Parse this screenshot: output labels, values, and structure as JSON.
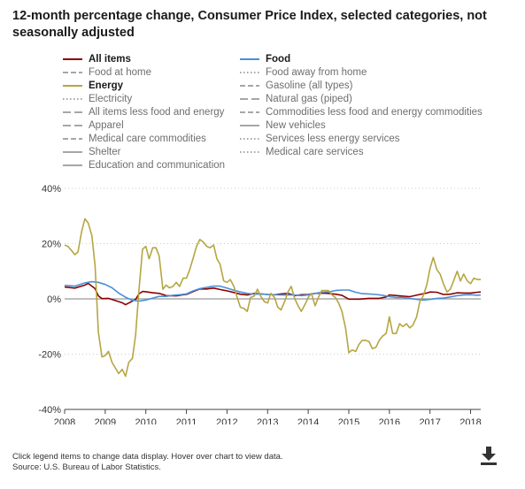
{
  "chart_data": {
    "type": "line",
    "title": "12-month percentage change, Consumer Price Index, selected categories, not seasonally adjusted",
    "xlabel": "",
    "ylabel": "",
    "xlim": [
      2008,
      2018.25
    ],
    "ylim": [
      -40,
      40
    ],
    "x_ticks": [
      "2008",
      "2009",
      "2010",
      "2011",
      "2012",
      "2013",
      "2014",
      "2015",
      "2016",
      "2017",
      "2018"
    ],
    "y_ticks": [
      "-40%",
      "-20%",
      "0%",
      "20%",
      "40%"
    ],
    "grid": "horizontal-dotted",
    "legend_entries": [
      {
        "name": "All items",
        "style": "solid",
        "active": true,
        "color": "#8b0000"
      },
      {
        "name": "Food",
        "style": "solid",
        "active": true,
        "color": "#4a90d9"
      },
      {
        "name": "Food at home",
        "style": "dashed",
        "active": false,
        "color": "#888888"
      },
      {
        "name": "Food away from home",
        "style": "dotted",
        "active": false,
        "color": "#888888"
      },
      {
        "name": "Energy",
        "style": "solid",
        "active": true,
        "color": "#b5a642"
      },
      {
        "name": "Gasoline (all types)",
        "style": "dashed",
        "active": false,
        "color": "#888888"
      },
      {
        "name": "Electricity",
        "style": "dotted",
        "active": false,
        "color": "#888888"
      },
      {
        "name": "Natural gas (piped)",
        "style": "longdash",
        "active": false,
        "color": "#888888"
      },
      {
        "name": "All items less food and energy",
        "style": "longdash",
        "active": false,
        "color": "#888888"
      },
      {
        "name": "Commodities less food and energy commodities",
        "style": "dashed",
        "active": false,
        "color": "#888888"
      },
      {
        "name": "Apparel",
        "style": "longdash",
        "active": false,
        "color": "#888888"
      },
      {
        "name": "New vehicles",
        "style": "solid",
        "active": false,
        "color": "#888888"
      },
      {
        "name": "Medical care commodities",
        "style": "dashed",
        "active": false,
        "color": "#888888"
      },
      {
        "name": "Services less energy services",
        "style": "dotted",
        "active": false,
        "color": "#888888"
      },
      {
        "name": "Shelter",
        "style": "solid",
        "active": false,
        "color": "#888888"
      },
      {
        "name": "Medical care services",
        "style": "dotted",
        "active": false,
        "color": "#888888"
      },
      {
        "name": "Education and communication",
        "style": "solid",
        "active": false,
        "color": "#888888"
      }
    ],
    "series": [
      {
        "name": "All items",
        "color": "#8b0000",
        "points": [
          [
            2008.0,
            4.3
          ],
          [
            2008.25,
            3.9
          ],
          [
            2008.5,
            5.0
          ],
          [
            2008.58,
            5.6
          ],
          [
            2008.75,
            3.7
          ],
          [
            2008.83,
            1.1
          ],
          [
            2008.92,
            0.1
          ],
          [
            2009.08,
            0.2
          ],
          [
            2009.25,
            -0.6
          ],
          [
            2009.42,
            -1.4
          ],
          [
            2009.5,
            -2.1
          ],
          [
            2009.58,
            -1.5
          ],
          [
            2009.75,
            -0.2
          ],
          [
            2009.83,
            1.8
          ],
          [
            2009.92,
            2.7
          ],
          [
            2010.0,
            2.6
          ],
          [
            2010.17,
            2.2
          ],
          [
            2010.33,
            2.0
          ],
          [
            2010.5,
            1.2
          ],
          [
            2010.75,
            1.1
          ],
          [
            2010.92,
            1.5
          ],
          [
            2011.0,
            1.6
          ],
          [
            2011.17,
            2.7
          ],
          [
            2011.33,
            3.6
          ],
          [
            2011.5,
            3.6
          ],
          [
            2011.67,
            3.9
          ],
          [
            2011.83,
            3.4
          ],
          [
            2012.0,
            2.9
          ],
          [
            2012.17,
            2.3
          ],
          [
            2012.33,
            1.7
          ],
          [
            2012.5,
            1.4
          ],
          [
            2012.67,
            2.0
          ],
          [
            2012.83,
            1.8
          ],
          [
            2013.0,
            1.6
          ],
          [
            2013.17,
            1.5
          ],
          [
            2013.33,
            1.8
          ],
          [
            2013.5,
            2.0
          ],
          [
            2013.67,
            1.2
          ],
          [
            2013.83,
            1.5
          ],
          [
            2014.0,
            1.6
          ],
          [
            2014.17,
            2.0
          ],
          [
            2014.33,
            2.1
          ],
          [
            2014.5,
            2.0
          ],
          [
            2014.67,
            1.7
          ],
          [
            2014.83,
            1.3
          ],
          [
            2015.0,
            -0.1
          ],
          [
            2015.25,
            -0.1
          ],
          [
            2015.5,
            0.2
          ],
          [
            2015.75,
            0.2
          ],
          [
            2015.92,
            0.7
          ],
          [
            2016.0,
            1.4
          ],
          [
            2016.25,
            1.1
          ],
          [
            2016.5,
            0.8
          ],
          [
            2016.75,
            1.6
          ],
          [
            2016.92,
            2.1
          ],
          [
            2017.0,
            2.5
          ],
          [
            2017.17,
            2.4
          ],
          [
            2017.33,
            1.6
          ],
          [
            2017.5,
            1.7
          ],
          [
            2017.67,
            2.2
          ],
          [
            2017.83,
            2.1
          ],
          [
            2018.0,
            2.1
          ],
          [
            2018.17,
            2.4
          ],
          [
            2018.25,
            2.5
          ]
        ]
      },
      {
        "name": "Food",
        "color": "#4a90d9",
        "points": [
          [
            2008.0,
            4.9
          ],
          [
            2008.25,
            4.6
          ],
          [
            2008.5,
            5.8
          ],
          [
            2008.67,
            6.2
          ],
          [
            2008.83,
            6.0
          ],
          [
            2009.0,
            5.2
          ],
          [
            2009.17,
            4.0
          ],
          [
            2009.33,
            2.1
          ],
          [
            2009.5,
            0.6
          ],
          [
            2009.67,
            -0.5
          ],
          [
            2009.83,
            -0.8
          ],
          [
            2010.0,
            -0.4
          ],
          [
            2010.17,
            0.3
          ],
          [
            2010.33,
            0.9
          ],
          [
            2010.5,
            0.9
          ],
          [
            2010.67,
            1.3
          ],
          [
            2010.83,
            1.5
          ],
          [
            2011.0,
            1.8
          ],
          [
            2011.17,
            2.9
          ],
          [
            2011.33,
            3.7
          ],
          [
            2011.5,
            4.2
          ],
          [
            2011.67,
            4.6
          ],
          [
            2011.83,
            4.6
          ],
          [
            2012.0,
            3.9
          ],
          [
            2012.17,
            3.1
          ],
          [
            2012.33,
            2.5
          ],
          [
            2012.5,
            2.0
          ],
          [
            2012.67,
            1.7
          ],
          [
            2012.83,
            1.8
          ],
          [
            2013.0,
            1.6
          ],
          [
            2013.17,
            1.5
          ],
          [
            2013.33,
            1.4
          ],
          [
            2013.5,
            1.4
          ],
          [
            2013.67,
            1.4
          ],
          [
            2013.83,
            1.2
          ],
          [
            2014.0,
            1.4
          ],
          [
            2014.17,
            2.0
          ],
          [
            2014.33,
            2.4
          ],
          [
            2014.5,
            2.5
          ],
          [
            2014.67,
            3.0
          ],
          [
            2014.83,
            3.2
          ],
          [
            2015.0,
            3.2
          ],
          [
            2015.17,
            2.4
          ],
          [
            2015.33,
            1.9
          ],
          [
            2015.5,
            1.8
          ],
          [
            2015.67,
            1.6
          ],
          [
            2015.83,
            1.3
          ],
          [
            2016.0,
            0.8
          ],
          [
            2016.17,
            0.5
          ],
          [
            2016.33,
            0.5
          ],
          [
            2016.5,
            0.2
          ],
          [
            2016.67,
            -0.2
          ],
          [
            2016.83,
            -0.4
          ],
          [
            2017.0,
            -0.2
          ],
          [
            2017.17,
            0.2
          ],
          [
            2017.33,
            0.3
          ],
          [
            2017.5,
            0.7
          ],
          [
            2017.67,
            1.2
          ],
          [
            2017.83,
            1.4
          ],
          [
            2018.0,
            1.5
          ],
          [
            2018.17,
            1.3
          ],
          [
            2018.25,
            1.4
          ]
        ]
      },
      {
        "name": "Energy",
        "color": "#b5a642",
        "points": [
          [
            2008.0,
            19.5
          ],
          [
            2008.08,
            19.0
          ],
          [
            2008.17,
            17.5
          ],
          [
            2008.25,
            16.0
          ],
          [
            2008.33,
            17.0
          ],
          [
            2008.42,
            24.5
          ],
          [
            2008.5,
            29.0
          ],
          [
            2008.58,
            27.5
          ],
          [
            2008.67,
            23.0
          ],
          [
            2008.75,
            12.0
          ],
          [
            2008.83,
            -12.0
          ],
          [
            2008.92,
            -21.0
          ],
          [
            2009.0,
            -20.5
          ],
          [
            2009.08,
            -19.0
          ],
          [
            2009.17,
            -23.0
          ],
          [
            2009.25,
            -25.0
          ],
          [
            2009.33,
            -27.0
          ],
          [
            2009.42,
            -25.5
          ],
          [
            2009.5,
            -28.0
          ],
          [
            2009.58,
            -23.0
          ],
          [
            2009.67,
            -21.5
          ],
          [
            2009.75,
            -13.0
          ],
          [
            2009.83,
            3.0
          ],
          [
            2009.92,
            18.0
          ],
          [
            2010.0,
            19.0
          ],
          [
            2010.08,
            14.5
          ],
          [
            2010.17,
            18.5
          ],
          [
            2010.25,
            18.5
          ],
          [
            2010.33,
            15.5
          ],
          [
            2010.42,
            3.5
          ],
          [
            2010.5,
            5.0
          ],
          [
            2010.58,
            4.0
          ],
          [
            2010.67,
            4.5
          ],
          [
            2010.75,
            6.0
          ],
          [
            2010.83,
            4.5
          ],
          [
            2010.92,
            7.5
          ],
          [
            2011.0,
            7.5
          ],
          [
            2011.08,
            10.5
          ],
          [
            2011.17,
            15.0
          ],
          [
            2011.25,
            19.0
          ],
          [
            2011.33,
            21.5
          ],
          [
            2011.42,
            20.5
          ],
          [
            2011.5,
            19.0
          ],
          [
            2011.58,
            18.5
          ],
          [
            2011.67,
            19.5
          ],
          [
            2011.75,
            14.5
          ],
          [
            2011.83,
            12.5
          ],
          [
            2011.92,
            6.5
          ],
          [
            2012.0,
            6.0
          ],
          [
            2012.08,
            7.0
          ],
          [
            2012.17,
            4.5
          ],
          [
            2012.25,
            0.5
          ],
          [
            2012.33,
            -3.0
          ],
          [
            2012.42,
            -3.5
          ],
          [
            2012.5,
            -4.5
          ],
          [
            2012.58,
            0.5
          ],
          [
            2012.67,
            1.0
          ],
          [
            2012.75,
            3.5
          ],
          [
            2012.83,
            1.0
          ],
          [
            2012.92,
            -1.0
          ],
          [
            2013.0,
            -1.5
          ],
          [
            2013.08,
            2.0
          ],
          [
            2013.17,
            0.5
          ],
          [
            2013.25,
            -3.0
          ],
          [
            2013.33,
            -4.0
          ],
          [
            2013.42,
            -1.0
          ],
          [
            2013.5,
            2.5
          ],
          [
            2013.58,
            4.5
          ],
          [
            2013.67,
            0.0
          ],
          [
            2013.75,
            -2.5
          ],
          [
            2013.83,
            -4.5
          ],
          [
            2013.92,
            -2.0
          ],
          [
            2014.0,
            0.5
          ],
          [
            2014.08,
            2.0
          ],
          [
            2014.17,
            -2.5
          ],
          [
            2014.25,
            0.5
          ],
          [
            2014.33,
            3.0
          ],
          [
            2014.42,
            3.0
          ],
          [
            2014.5,
            3.0
          ],
          [
            2014.58,
            1.5
          ],
          [
            2014.67,
            0.5
          ],
          [
            2014.75,
            -1.5
          ],
          [
            2014.83,
            -4.5
          ],
          [
            2014.92,
            -10.5
          ],
          [
            2015.0,
            -19.5
          ],
          [
            2015.08,
            -18.5
          ],
          [
            2015.17,
            -19.0
          ],
          [
            2015.25,
            -16.5
          ],
          [
            2015.33,
            -15.0
          ],
          [
            2015.42,
            -15.0
          ],
          [
            2015.5,
            -15.5
          ],
          [
            2015.58,
            -18.0
          ],
          [
            2015.67,
            -17.5
          ],
          [
            2015.75,
            -15.0
          ],
          [
            2015.83,
            -13.5
          ],
          [
            2015.92,
            -12.5
          ],
          [
            2016.0,
            -6.5
          ],
          [
            2016.08,
            -12.5
          ],
          [
            2016.17,
            -12.5
          ],
          [
            2016.25,
            -9.0
          ],
          [
            2016.33,
            -10.0
          ],
          [
            2016.42,
            -9.0
          ],
          [
            2016.5,
            -10.5
          ],
          [
            2016.58,
            -9.5
          ],
          [
            2016.67,
            -6.5
          ],
          [
            2016.75,
            -1.0
          ],
          [
            2016.83,
            1.0
          ],
          [
            2016.92,
            5.0
          ],
          [
            2017.0,
            11.0
          ],
          [
            2017.08,
            15.0
          ],
          [
            2017.17,
            10.5
          ],
          [
            2017.25,
            9.0
          ],
          [
            2017.33,
            5.5
          ],
          [
            2017.42,
            2.5
          ],
          [
            2017.5,
            3.5
          ],
          [
            2017.58,
            6.5
          ],
          [
            2017.67,
            10.0
          ],
          [
            2017.75,
            6.5
          ],
          [
            2017.83,
            9.0
          ],
          [
            2017.92,
            6.5
          ],
          [
            2018.0,
            5.5
          ],
          [
            2018.08,
            7.5
          ],
          [
            2018.17,
            7.0
          ],
          [
            2018.25,
            7.0
          ]
        ]
      }
    ],
    "note": "Click legend items to change data display. Hover over chart to view data.",
    "source": "Source: U.S. Bureau of Labor Statistics."
  },
  "toolbar": {
    "download_icon": "download-icon"
  }
}
